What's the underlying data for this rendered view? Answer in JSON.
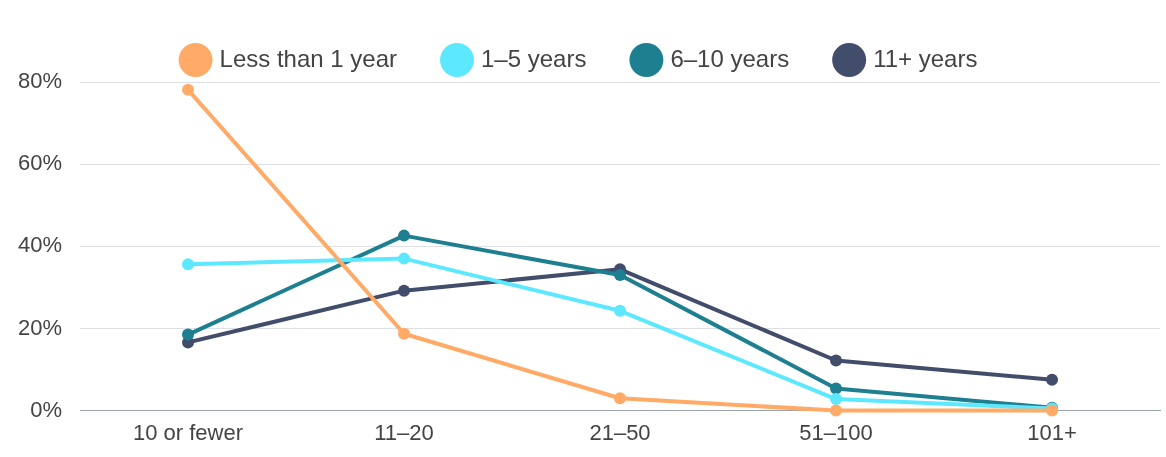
{
  "chart_data": {
    "type": "line",
    "categories": [
      "10 or fewer",
      "11–20",
      "21–50",
      "51–100",
      "101+"
    ],
    "series": [
      {
        "name": "Less than 1 year",
        "color": "#ffaa66",
        "values": [
          78.1,
          18.7,
          3.0,
          0,
          0
        ]
      },
      {
        "name": "1–5 years",
        "color": "#5ce8ff",
        "values": [
          35.6,
          37.0,
          24.3,
          2.8,
          0.5
        ]
      },
      {
        "name": "6–10 years",
        "color": "#1e7f91",
        "values": [
          18.5,
          42.6,
          33.0,
          5.4,
          0.7
        ]
      },
      {
        "name": "11+ years",
        "color": "#424c6b",
        "values": [
          16.6,
          29.2,
          34.4,
          12.2,
          7.5
        ]
      }
    ],
    "ylim": [
      0,
      80
    ],
    "yticks": [
      {
        "value": 0,
        "label": "0%"
      },
      {
        "value": 20,
        "label": "20%"
      },
      {
        "value": 40,
        "label": "40%"
      },
      {
        "value": 60,
        "label": "60%"
      },
      {
        "value": 80,
        "label": "80%"
      }
    ],
    "grid": "y",
    "legend": "top",
    "marker": "circle",
    "line_style": "solid"
  }
}
